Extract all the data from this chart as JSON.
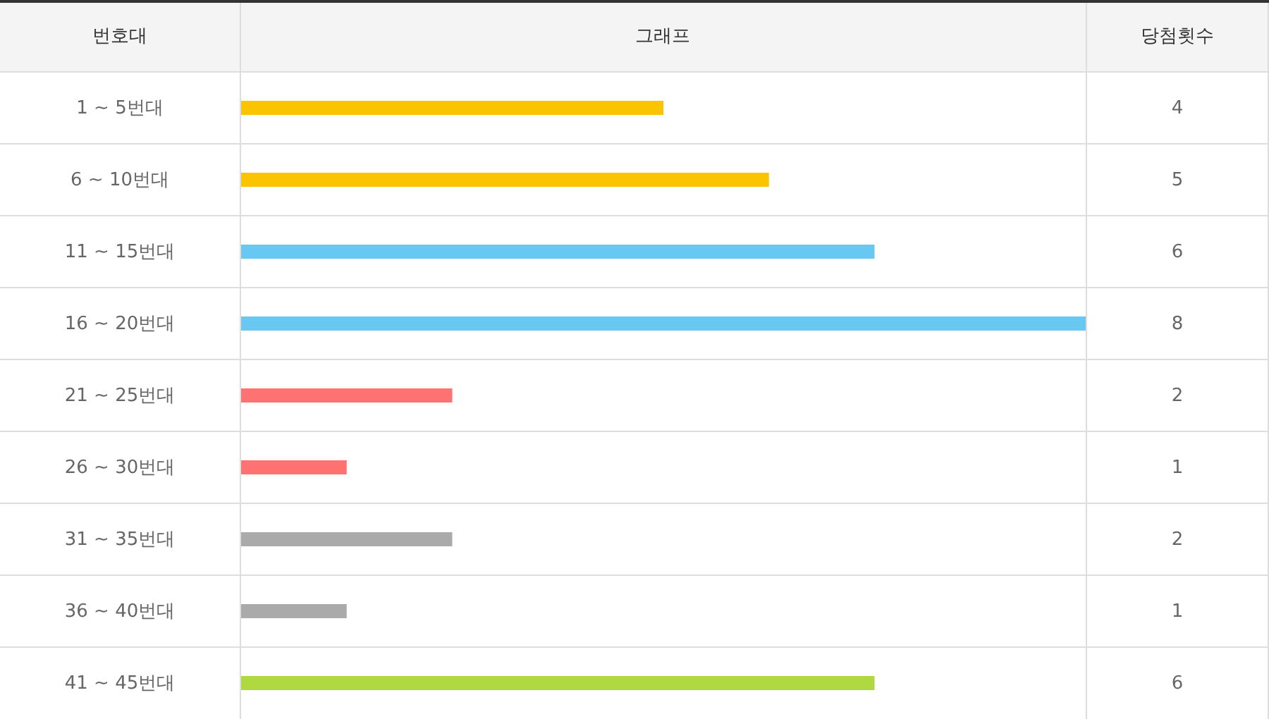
{
  "chart_data": {
    "type": "bar",
    "orientation": "horizontal",
    "title": "그래프",
    "ylabel": "번호대",
    "xlabel": "당첨횟수",
    "categories": [
      "1 ~ 5번대",
      "6 ~ 10번대",
      "11 ~ 15번대",
      "16 ~ 20번대",
      "21 ~ 25번대",
      "26 ~ 30번대",
      "31 ~ 35번대",
      "36 ~ 40번대",
      "41 ~ 45번대"
    ],
    "values": [
      4,
      5,
      6,
      8,
      2,
      1,
      2,
      1,
      6
    ],
    "colors": [
      "#fbc400",
      "#fbc400",
      "#69c8f2",
      "#69c8f2",
      "#ff7272",
      "#ff7272",
      "#aaaaaa",
      "#aaaaaa",
      "#b0d840"
    ],
    "data_labels": true
  }
}
